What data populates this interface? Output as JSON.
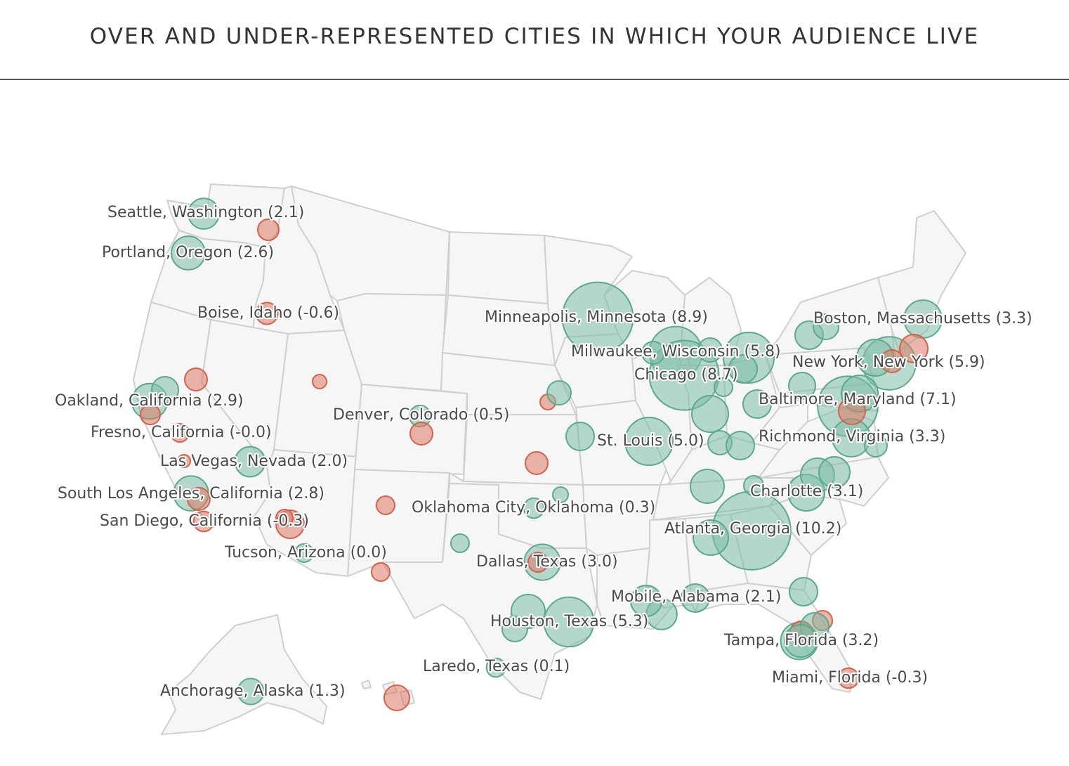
{
  "title": "OVER AND UNDER-REPRESENTED CITIES IN WHICH YOUR AUDIENCE LIVE",
  "colors": {
    "positive": "#7ebea8",
    "negative": "#dc7864",
    "land": "#f6f6f6",
    "border": "#cfcfcf"
  },
  "labels": [
    {
      "text": "Seattle, Washington (2.1)"
    },
    {
      "text": "Portland, Oregon (2.6)"
    },
    {
      "text": "Boise, Idaho (-0.6)"
    },
    {
      "text": "Oakland, California (2.9)"
    },
    {
      "text": "Fresno, California (-0.0)"
    },
    {
      "text": "Las Vegas, Nevada (2.0)"
    },
    {
      "text": "South Los Angeles, California (2.8)"
    },
    {
      "text": "San Diego, California (-0.3)"
    },
    {
      "text": "Tucson, Arizona (0.0)"
    },
    {
      "text": "Denver, Colorado (0.5)"
    },
    {
      "text": "Oklahoma City, Oklahoma (0.3)"
    },
    {
      "text": "Dallas, Texas (3.0)"
    },
    {
      "text": "Houston, Texas (5.3)"
    },
    {
      "text": "Laredo, Texas (0.1)"
    },
    {
      "text": "Anchorage, Alaska (1.3)"
    },
    {
      "text": "Minneapolis, Minnesota (8.9)"
    },
    {
      "text": "Milwaukee, Wisconsin (5.8)"
    },
    {
      "text": "Chicago (8.7)"
    },
    {
      "text": "St. Louis (5.0)"
    },
    {
      "text": "Boston, Massachusetts (3.3)"
    },
    {
      "text": "New York, New York (5.9)"
    },
    {
      "text": "Baltimore, Maryland (7.1)"
    },
    {
      "text": "Richmond, Virginia (3.3)"
    },
    {
      "text": "Charlotte (3.1)"
    },
    {
      "text": "Atlanta, Georgia (10.2)"
    },
    {
      "text": "Mobile, Alabama (2.1)"
    },
    {
      "text": "Tampa, Florida (3.2)"
    },
    {
      "text": "Miami, Florida (-0.3)"
    }
  ],
  "bubbles": [
    {
      "name": "Seattle, Washington",
      "value": 2.1
    },
    {
      "name": "Portland, Oregon",
      "value": 2.6
    },
    {
      "name": "Boise, Idaho",
      "value": -0.6
    },
    {
      "name": "Oakland, California",
      "value": 2.9
    },
    {
      "name": "Fresno, California",
      "value": -0.0
    },
    {
      "name": "Las Vegas, Nevada",
      "value": 2.0
    },
    {
      "name": "South Los Angeles, California",
      "value": 2.8
    },
    {
      "name": "San Diego, California",
      "value": -0.3
    },
    {
      "name": "Tucson, Arizona",
      "value": 0.0
    },
    {
      "name": "Denver, Colorado",
      "value": 0.5
    },
    {
      "name": "Oklahoma City, Oklahoma",
      "value": 0.3
    },
    {
      "name": "Dallas, Texas",
      "value": 3.0
    },
    {
      "name": "Houston, Texas",
      "value": 5.3
    },
    {
      "name": "Laredo, Texas",
      "value": 0.1
    },
    {
      "name": "Anchorage, Alaska",
      "value": 1.3
    },
    {
      "name": "Minneapolis, Minnesota",
      "value": 8.9
    },
    {
      "name": "Milwaukee, Wisconsin",
      "value": 5.8
    },
    {
      "name": "Chicago",
      "value": 8.7
    },
    {
      "name": "St. Louis",
      "value": 5.0
    },
    {
      "name": "Boston, Massachusetts",
      "value": 3.3
    },
    {
      "name": "New York, New York",
      "value": 5.9
    },
    {
      "name": "Baltimore, Maryland",
      "value": 7.1
    },
    {
      "name": "Richmond, Virginia",
      "value": 3.3
    },
    {
      "name": "Charlotte",
      "value": 3.1
    },
    {
      "name": "Atlanta, Georgia",
      "value": 10.2
    },
    {
      "name": "Mobile, Alabama",
      "value": 2.1
    },
    {
      "name": "Tampa, Florida",
      "value": 3.2
    },
    {
      "name": "Miami, Florida",
      "value": -0.3
    }
  ]
}
